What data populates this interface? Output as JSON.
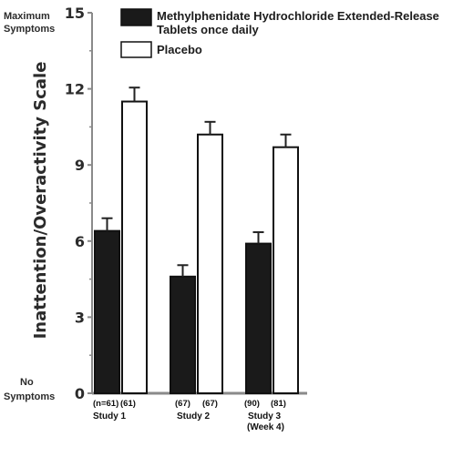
{
  "chart_data": {
    "type": "bar",
    "ylabel": "Inattention/Overactivity Scale",
    "ylim": [
      0,
      15
    ],
    "yticks": [
      "0",
      "3",
      "6",
      "9",
      "12",
      "15"
    ],
    "y_top_label": [
      "Maximum",
      "Symptoms"
    ],
    "y_bottom_label": [
      "No",
      "Symptoms"
    ],
    "categories": [
      "Study 1",
      "Study 2",
      "Study 3 (Week 4)"
    ],
    "category_lines": [
      [
        "Study 1"
      ],
      [
        "Study 2"
      ],
      [
        "Study 3",
        "(Week 4)"
      ]
    ],
    "n_labels": [
      [
        "(n=61)",
        "(61)"
      ],
      [
        "(67)",
        "(67)"
      ],
      [
        "(90)",
        "(81)"
      ]
    ],
    "series": [
      {
        "name": "Methylphenidate Hydrochloride Extended-Release Tablets once daily",
        "legend_lines": [
          "Methylphenidate Hydrochloride Extended-Release",
          "Tablets once daily"
        ],
        "color": "#1a1a1a",
        "values": [
          6.4,
          4.6,
          5.9
        ],
        "error": [
          0.5,
          0.45,
          0.45
        ]
      },
      {
        "name": "Placebo",
        "legend_lines": [
          "Placebo"
        ],
        "color": "#ffffff",
        "values": [
          11.5,
          10.2,
          9.7
        ],
        "error": [
          0.55,
          0.5,
          0.5
        ]
      }
    ],
    "legend_position": "top-right",
    "grid": false
  }
}
